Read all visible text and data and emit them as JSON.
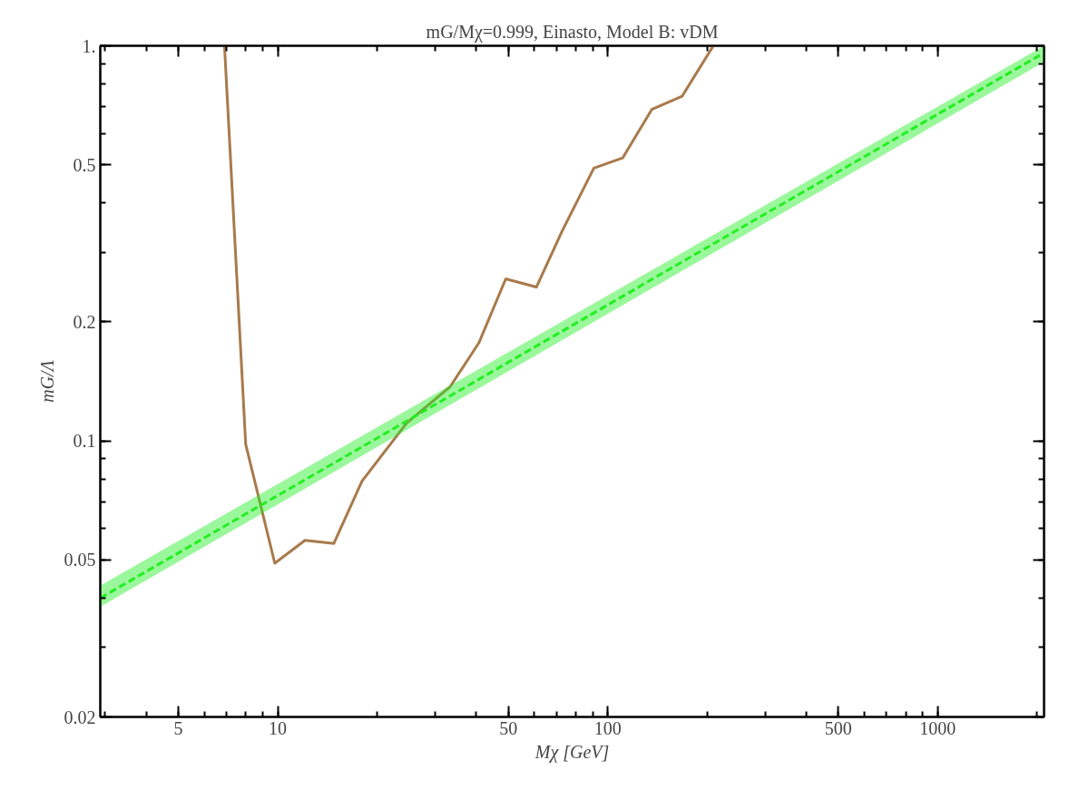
{
  "chart_data": {
    "type": "line",
    "title": "mG/Mχ=0.999, Einasto, Model B: vDM",
    "xlabel": "Mχ [GeV]",
    "ylabel": "mG/Λ",
    "log": "xy",
    "grid": false,
    "xlim": [
      2.9,
      2100
    ],
    "ylim": [
      0.02,
      1
    ],
    "xticks": [
      5,
      10,
      50,
      100,
      500,
      1000
    ],
    "yticks": [
      0.02,
      0.05,
      0.1,
      0.2,
      0.5,
      {
        "value": 1,
        "label": "1."
      }
    ],
    "series": [
      {
        "color": "#a87a4c",
        "line_style": "solid",
        "x": [
          6.9,
          8.0,
          9.8,
          12.1,
          14.8,
          18.0,
          24.6,
          33.3,
          40.7,
          49.1,
          60.8,
          72.8,
          90.8,
          111,
          136,
          168,
          209
        ],
        "values": [
          1.0,
          0.098,
          0.049,
          0.056,
          0.055,
          0.079,
          0.111,
          0.137,
          0.177,
          0.257,
          0.245,
          0.34,
          0.49,
          0.52,
          0.69,
          0.745,
          1.0
        ]
      },
      {
        "color": "#22ee22",
        "line_style": "dashed",
        "x": [
          2.9,
          2100
        ],
        "values": [
          0.04,
          0.96
        ],
        "lower": [
          0.038,
          0.91
        ],
        "upper": [
          0.043,
          1.0
        ]
      }
    ]
  }
}
